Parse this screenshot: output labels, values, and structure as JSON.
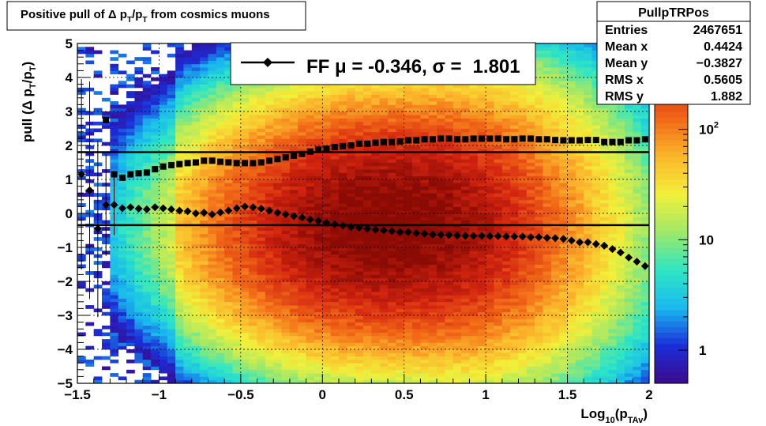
{
  "chart_data": {
    "type": "heatmap",
    "title": "Positive pull of Δ p_T/p_T from cosmics muons",
    "xlabel": "Log_10(p_TAv)",
    "ylabel": "pull (Δ p_T/p_T)",
    "xlim": [
      -1.5,
      2
    ],
    "ylim": [
      -5,
      5
    ],
    "x_ticks": [
      "−1.5",
      "−1",
      "−0.5",
      "0",
      "0.5",
      "1",
      "1.5",
      "2"
    ],
    "x_tick_values": [
      -1.5,
      -1,
      -0.5,
      0,
      0.5,
      1,
      1.5,
      2
    ],
    "y_ticks": [
      "5",
      "4",
      "3",
      "2",
      "1",
      "0",
      "−1",
      "−2",
      "−3",
      "−4",
      "−5"
    ],
    "y_tick_values": [
      5,
      4,
      3,
      2,
      1,
      0,
      -1,
      -2,
      -3,
      -4,
      -5
    ],
    "grid": true,
    "z_scale": "log",
    "z_ticks": [
      {
        "label": "1",
        "value": 1
      },
      {
        "label": "10",
        "value": 10
      },
      {
        "label": "10^2",
        "value": 100
      }
    ],
    "z_range": [
      0.5,
      600
    ],
    "colormap": [
      "#3b0a8c",
      "#1a2ed8",
      "#19b9ee",
      "#2ee6c4",
      "#9fe86a",
      "#f2f03a",
      "#fbb82c",
      "#f26a17",
      "#d42510",
      "#8a0a04"
    ],
    "legend": {
      "position": "top",
      "text_prefix": "FF",
      "mu_label": "μ = -0.346,",
      "sigma_label": "σ =",
      "sigma_value": "1.801"
    },
    "stats": {
      "title": "PullpTRPos",
      "rows": [
        {
          "label": "Entries",
          "value": "2467651"
        },
        {
          "label": "Mean x",
          "value": "0.4424"
        },
        {
          "label": "Mean y",
          "value": "−0.3827"
        },
        {
          "label": "RMS x",
          "value": "0.5605"
        },
        {
          "label": "RMS y",
          "value": "1.882"
        }
      ]
    },
    "reference_lines": [
      {
        "name": "mu",
        "y": -0.346
      },
      {
        "name": "sigma",
        "y": 1.801
      }
    ],
    "series": [
      {
        "name": "mean",
        "marker": "diamond",
        "x": [
          -1.475,
          -1.425,
          -1.375,
          -1.325,
          -1.275,
          -1.225,
          -1.175,
          -1.125,
          -1.075,
          -1.025,
          -0.975,
          -0.925,
          -0.875,
          -0.825,
          -0.775,
          -0.725,
          -0.675,
          -0.625,
          -0.575,
          -0.525,
          -0.475,
          -0.425,
          -0.375,
          -0.325,
          -0.275,
          -0.225,
          -0.175,
          -0.125,
          -0.075,
          -0.025,
          0.025,
          0.075,
          0.125,
          0.175,
          0.225,
          0.275,
          0.325,
          0.375,
          0.425,
          0.475,
          0.525,
          0.575,
          0.625,
          0.675,
          0.725,
          0.775,
          0.825,
          0.875,
          0.925,
          0.975,
          1.025,
          1.075,
          1.125,
          1.175,
          1.225,
          1.275,
          1.325,
          1.375,
          1.425,
          1.475,
          1.525,
          1.575,
          1.625,
          1.675,
          1.725,
          1.775,
          1.825,
          1.875,
          1.925,
          1.975
        ],
        "y": [
          1.15,
          0.68,
          -0.45,
          0.25,
          0.25,
          0.15,
          0.18,
          0.14,
          0.12,
          0.18,
          0.15,
          0.12,
          0.08,
          0.06,
          0.0,
          0.02,
          -0.03,
          0.03,
          0.08,
          0.15,
          0.2,
          0.18,
          0.14,
          0.08,
          0.02,
          -0.03,
          -0.08,
          -0.12,
          -0.18,
          -0.22,
          -0.28,
          -0.32,
          -0.36,
          -0.4,
          -0.42,
          -0.45,
          -0.48,
          -0.5,
          -0.52,
          -0.55,
          -0.55,
          -0.58,
          -0.6,
          -0.62,
          -0.63,
          -0.64,
          -0.65,
          -0.66,
          -0.66,
          -0.66,
          -0.67,
          -0.67,
          -0.68,
          -0.68,
          -0.68,
          -0.7,
          -0.7,
          -0.72,
          -0.73,
          -0.75,
          -0.8,
          -0.85,
          -0.85,
          -0.9,
          -0.95,
          -1.05,
          -1.15,
          -1.3,
          -1.42,
          -1.55
        ],
        "errors": [
          2.8,
          3.2,
          2.6,
          1.5,
          0.9,
          0.0
        ]
      },
      {
        "name": "sigma",
        "marker": "square",
        "x": [
          -1.325,
          -1.275,
          -1.225,
          -1.175,
          -1.125,
          -1.075,
          -1.025,
          -0.975,
          -0.925,
          -0.875,
          -0.825,
          -0.775,
          -0.725,
          -0.675,
          -0.625,
          -0.575,
          -0.525,
          -0.475,
          -0.425,
          -0.375,
          -0.325,
          -0.275,
          -0.225,
          -0.175,
          -0.125,
          -0.075,
          -0.025,
          0.025,
          0.075,
          0.125,
          0.175,
          0.225,
          0.275,
          0.325,
          0.375,
          0.425,
          0.475,
          0.525,
          0.575,
          0.625,
          0.675,
          0.725,
          0.775,
          0.825,
          0.875,
          0.925,
          0.975,
          1.025,
          1.075,
          1.125,
          1.175,
          1.225,
          1.275,
          1.325,
          1.375,
          1.425,
          1.475,
          1.525,
          1.575,
          1.625,
          1.675,
          1.725,
          1.775,
          1.825,
          1.875,
          1.925,
          1.975
        ],
        "y": [
          2.75,
          1.15,
          1.05,
          1.15,
          1.18,
          1.2,
          1.3,
          1.38,
          1.42,
          1.45,
          1.48,
          1.5,
          1.55,
          1.55,
          1.52,
          1.5,
          1.48,
          1.48,
          1.48,
          1.5,
          1.55,
          1.6,
          1.65,
          1.7,
          1.75,
          1.82,
          1.88,
          1.9,
          1.95,
          1.98,
          2.0,
          2.05,
          2.05,
          2.08,
          2.1,
          2.1,
          2.12,
          2.15,
          2.15,
          2.18,
          2.18,
          2.2,
          2.2,
          2.18,
          2.18,
          2.2,
          2.2,
          2.2,
          2.2,
          2.18,
          2.18,
          2.2,
          2.2,
          2.18,
          2.18,
          2.16,
          2.15,
          2.15,
          2.15,
          2.16,
          2.16,
          2.1,
          2.1,
          2.1,
          2.15,
          2.15,
          2.18
        ]
      }
    ]
  }
}
